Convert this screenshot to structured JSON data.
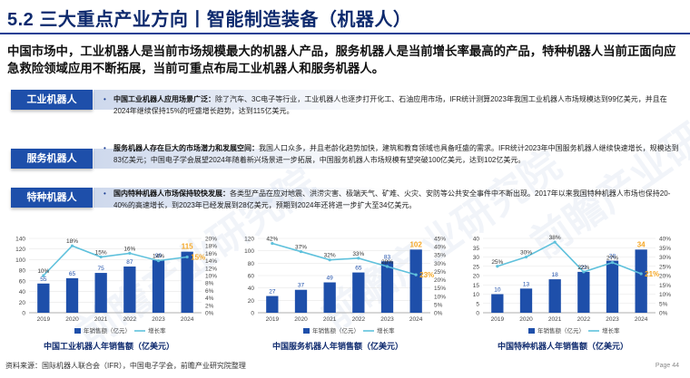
{
  "title": "5.2 三大重点产业方向丨智能制造装备（机器人）",
  "summary": "中国市场中，工业机器人是当前市场规模最大的机器人产品，服务机器人是当前增长率最高的产品，特种机器人当前正面向应急救险领域应用不断拓展，当前可重点布局工业机器人和服务机器人。",
  "sections": [
    {
      "label": "工业机器人",
      "bold": "中国工业机器人应用场景广泛：",
      "text": "除了汽车、3C电子等行业，工业机器人也逐步打开化工、石油应用市场，IFR统计测算2023年我国工业机器人市场规模达到99亿美元，并且在2024年继续保持15%的旺盛增长趋势，达到115亿美元。"
    },
    {
      "label": "服务机器人",
      "bold": "服务机器人存在巨大的市场潜力和发展空间：",
      "text": "我国人口众多，并且老龄化趋势加快，建筑和教育领域也具备旺盛的需求。IFR统计2023年中国服务机器人继续快速增长，规模达到83亿美元；中国电子学会展望2024年随着新兴场景进一步拓展，中国服务机器人市场规模有望突破100亿美元，达到102亿美元。"
    },
    {
      "label": "特种机器人",
      "bold": "国内特种机器人市场保持较快发展：",
      "text": "各类型产品在应对地震、洪涝灾害、极端天气、矿难、火灾、安防等公共安全事件中不断出现。2017年以来我国特种机器人市场也保持20-40%的高速增长，到2023年已经发展到28亿美元，预期到2024年还将进一步扩大至34亿美元。"
    }
  ],
  "chart_data": [
    {
      "type": "bar",
      "title": "中国工业机器人年销售额（亿美元）",
      "categories": [
        "2019",
        "2020",
        "2021",
        "2022",
        "2023",
        "2024"
      ],
      "series": [
        {
          "name": "年销售额（亿元）",
          "kind": "bar",
          "axis": "left",
          "values": [
            55,
            65,
            75,
            87,
            99,
            115
          ]
        },
        {
          "name": "增长率",
          "kind": "line",
          "axis": "right",
          "values": [
            10,
            18,
            15,
            16,
            14,
            15
          ],
          "labels": [
            "10%",
            "18%",
            "15%",
            "16%",
            "14%",
            "15%"
          ]
        }
      ],
      "ylim_left": [
        0,
        140
      ],
      "yticks_left": [
        "0",
        "20",
        "40",
        "60",
        "80",
        "100",
        "120",
        "140"
      ],
      "ylim_right": [
        0,
        20
      ],
      "yticks_right": [
        "0%",
        "2%",
        "4%",
        "6%",
        "8%",
        "10%",
        "12%",
        "14%",
        "16%",
        "18%",
        "20%"
      ]
    },
    {
      "type": "bar",
      "title": "中国服务机器人年销售额（亿美元）",
      "categories": [
        "2019",
        "2020",
        "2021",
        "2022",
        "2023",
        "2024"
      ],
      "series": [
        {
          "name": "年销售额（亿元）",
          "kind": "bar",
          "axis": "left",
          "values": [
            27,
            37,
            49,
            65,
            83,
            102
          ]
        },
        {
          "name": "增长率",
          "kind": "line",
          "axis": "right",
          "values": [
            42,
            37,
            32,
            33,
            28,
            23
          ],
          "labels": [
            "42%",
            "37%",
            "32%",
            "33%",
            "28%",
            "23%"
          ]
        }
      ],
      "ylim_left": [
        0,
        120
      ],
      "yticks_left": [
        "0",
        "20",
        "40",
        "60",
        "80",
        "100",
        "120"
      ],
      "ylim_right": [
        0,
        45
      ],
      "yticks_right": [
        "0%",
        "5%",
        "10%",
        "15%",
        "20%",
        "25%",
        "30%",
        "35%",
        "40%",
        "45%"
      ]
    },
    {
      "type": "bar",
      "title": "中国特种机器人年销售额（亿美元）",
      "categories": [
        "2019",
        "2020",
        "2021",
        "2022",
        "2023",
        "2024"
      ],
      "series": [
        {
          "name": "年销售额（亿元）",
          "kind": "bar",
          "axis": "left",
          "values": [
            10,
            13,
            18,
            22,
            28,
            34
          ]
        },
        {
          "name": "增长率",
          "kind": "line",
          "axis": "right",
          "values": [
            25,
            30,
            38,
            22,
            27,
            21
          ],
          "labels": [
            "25%",
            "30%",
            "38%",
            "22%",
            "27%",
            "21%"
          ]
        }
      ],
      "ylim_left": [
        0,
        40
      ],
      "yticks_left": [
        "0",
        "5",
        "10",
        "15",
        "20",
        "25",
        "30",
        "35",
        "40"
      ],
      "ylim_right": [
        0,
        40
      ],
      "yticks_right": [
        "0%",
        "5%",
        "10%",
        "15%",
        "20%",
        "25%",
        "30%",
        "35%",
        "40%"
      ]
    }
  ],
  "colors": {
    "bar": "#1e4faa",
    "bar_highlight": "#f5a623",
    "line": "#5fc1dc",
    "title": "#0e2a6e"
  },
  "footer": "资料来源：国际机器人联合会（IFR），中国电子学会，前瞻产业研究院整理",
  "page_number": "Page 44"
}
